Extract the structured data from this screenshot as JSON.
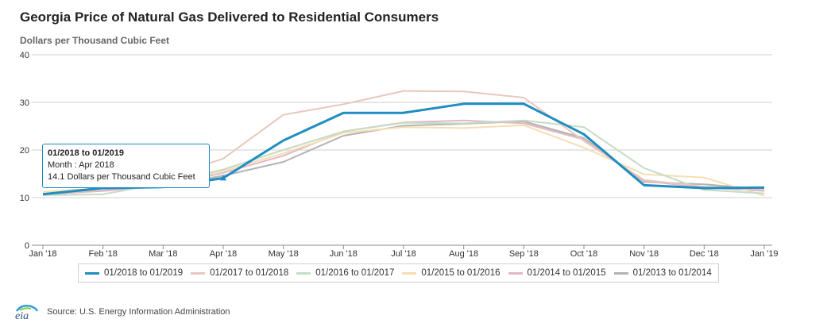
{
  "title": "Georgia Price of Natural Gas Delivered to Residential Consumers",
  "subtitle": "Dollars per Thousand Cubic Feet",
  "source": "Source: U.S. Energy Information Administration",
  "logo_text": "eia",
  "tooltip": {
    "title": "01/2018 to 01/2019",
    "month": "Month : Apr 2018",
    "value": "14.1 Dollars per Thousand Cubic Feet"
  },
  "chart_data": {
    "type": "line",
    "title": "Georgia Price of Natural Gas Delivered to Residential Consumers",
    "ylabel": "Dollars per Thousand Cubic Feet",
    "ylim": [
      0,
      40
    ],
    "yticks": [
      0,
      10,
      20,
      30,
      40
    ],
    "grid": true,
    "legend_position": "bottom",
    "categories": [
      "Jan '18",
      "Feb '18",
      "Mar '18",
      "Apr '18",
      "May '18",
      "Jun '18",
      "Jul '18",
      "Aug '18",
      "Sep '18",
      "Oct '18",
      "Nov '18",
      "Dec '18",
      "Jan '19"
    ],
    "series": [
      {
        "name": "01/2018 to 01/2019",
        "color": "#1f8dc1",
        "values": [
          10.7,
          12.0,
          12.2,
          14.1,
          22.0,
          27.8,
          27.8,
          29.7,
          29.7,
          23.3,
          12.6,
          12.0,
          12.1
        ]
      },
      {
        "name": "01/2017 to 01/2018",
        "color": "#e8c7bd",
        "values": [
          10.6,
          12.2,
          13.9,
          18.2,
          27.4,
          29.6,
          32.4,
          32.3,
          31.0,
          21.9,
          13.7,
          12.3,
          11.7
        ]
      },
      {
        "name": "01/2016 to 01/2017",
        "color": "#c5dcc5",
        "values": [
          10.5,
          10.7,
          13.0,
          15.9,
          20.0,
          23.9,
          25.7,
          25.6,
          26.2,
          24.8,
          16.2,
          11.6,
          10.9
        ]
      },
      {
        "name": "01/2015 to 01/2016",
        "color": "#f5deb1",
        "values": [
          11.2,
          12.0,
          12.8,
          15.6,
          19.3,
          23.6,
          24.8,
          24.6,
          25.2,
          20.5,
          14.9,
          14.2,
          10.4
        ]
      },
      {
        "name": "01/2014 to 01/2015",
        "color": "#e2b8c5",
        "values": [
          10.7,
          11.4,
          12.4,
          15.2,
          18.8,
          23.9,
          25.8,
          26.2,
          25.6,
          22.2,
          13.5,
          12.1,
          11.4
        ]
      },
      {
        "name": "01/2013 to 01/2014",
        "color": "#b3b3b3",
        "values": [
          10.6,
          11.5,
          12.4,
          14.6,
          17.5,
          23.0,
          25.1,
          25.5,
          26.0,
          22.5,
          13.3,
          12.8,
          11.7
        ]
      }
    ],
    "highlight": {
      "series": 0,
      "index": 3
    }
  }
}
